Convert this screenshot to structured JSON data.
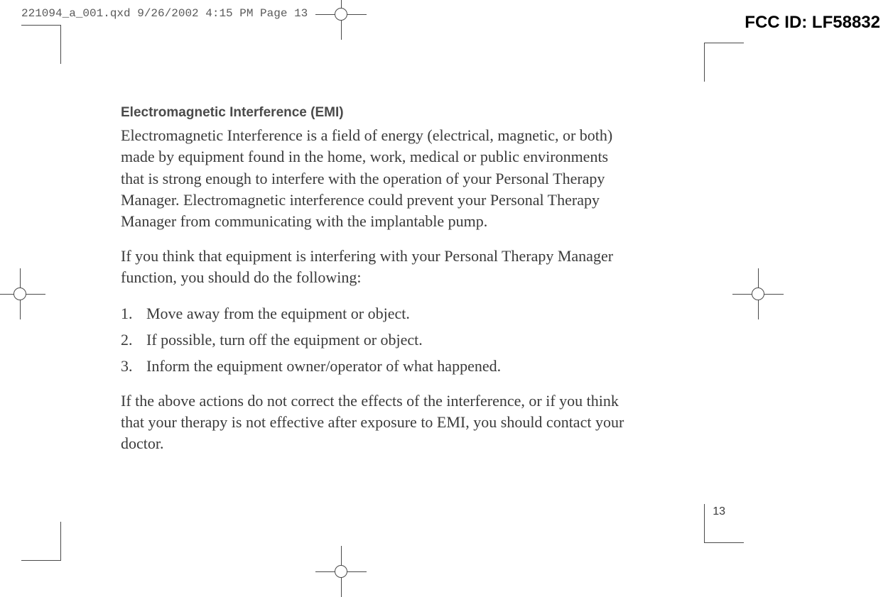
{
  "header": {
    "file_meta": "221094_a_001.qxd  9/26/2002  4:15 PM  Page 13",
    "fcc_id": "FCC ID: LF58832"
  },
  "content": {
    "section_heading": "Electromagnetic Interference (EMI)",
    "paragraph1": "Electromagnetic Interference is a field of energy (electrical, magnetic, or both) made by equipment found in the home, work, medical or public environments that is strong enough to interfere with the operation of your Personal Therapy Manager. Electromagnetic interference could prevent your Personal Therapy Manager from communicating with the implantable pump.",
    "paragraph2": "If you think that equipment is interfering with your Personal Therapy Manager function, you should do the following:",
    "list": [
      {
        "num": "1.",
        "text": "Move away from the equipment or object."
      },
      {
        "num": "2.",
        "text": "If possible, turn off the equipment or object."
      },
      {
        "num": "3.",
        "text": "Inform the equipment owner/operator of what happened."
      }
    ],
    "paragraph3": "If the above actions do not correct the effects of the interference, or if you think that your therapy is not effective after exposure to EMI, you should contact your doctor."
  },
  "page_number": "13",
  "colors": {
    "text_body": "#3a3a3a",
    "text_meta": "#5a5a5a",
    "crop_marks": "#4a4a4a",
    "background": "#ffffff"
  },
  "typography": {
    "heading_font": "Arial",
    "heading_size_pt": 14,
    "heading_weight": "bold",
    "body_font": "Palatino",
    "body_size_pt": 16,
    "meta_font": "Courier",
    "meta_size_pt": 12,
    "fcc_size_pt": 18
  }
}
